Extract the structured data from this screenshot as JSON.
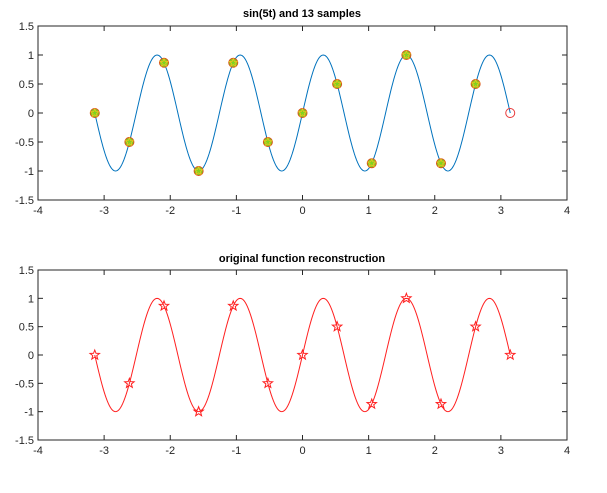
{
  "chart_data": [
    {
      "type": "line",
      "title": "sin(5t) and 13 samples",
      "xlabel": "",
      "ylabel": "",
      "xlim": [
        -4,
        4
      ],
      "ylim": [
        -1.5,
        1.5
      ],
      "xticks": [
        -4,
        -3,
        -2,
        -1,
        0,
        1,
        2,
        3,
        4
      ],
      "yticks": [
        -1.5,
        -1,
        -0.5,
        0,
        0.5,
        1,
        1.5
      ],
      "xtick_labels": [
        "-4",
        "-3",
        "-2",
        "-1",
        "0",
        "1",
        "2",
        "3",
        "4"
      ],
      "ytick_labels": [
        "-1.5",
        "-1",
        "-0.5",
        "0",
        "0.5",
        "1",
        "1.5"
      ],
      "grid": false,
      "curve": {
        "function": "sin(5t)",
        "t_range": [
          -3.1416,
          3.1416
        ],
        "color": "#0072BD"
      },
      "samples": {
        "t": [
          -3.1416,
          -2.618,
          -2.0944,
          -1.5708,
          -1.0472,
          -0.5236,
          0,
          0.5236,
          1.0472,
          1.5708,
          2.0944,
          2.618,
          3.1416
        ],
        "y": [
          0,
          -0.5,
          0.866,
          -1,
          0.866,
          -0.5,
          0,
          0.5,
          -0.866,
          1,
          -0.866,
          0.5,
          0
        ],
        "marker_fill": "#7ED321",
        "marker_edge": "#D95319",
        "star_color": "#F0C020"
      },
      "open_marker": {
        "t": 3.1416,
        "y": 0,
        "color": "#E8393A"
      }
    },
    {
      "type": "line",
      "title": "original function reconstruction",
      "xlabel": "",
      "ylabel": "",
      "xlim": [
        -4,
        4
      ],
      "ylim": [
        -1.5,
        1.5
      ],
      "xticks": [
        -4,
        -3,
        -2,
        -1,
        0,
        1,
        2,
        3,
        4
      ],
      "yticks": [
        -1.5,
        -1,
        -0.5,
        0,
        0.5,
        1,
        1.5
      ],
      "xtick_labels": [
        "-4",
        "-3",
        "-2",
        "-1",
        "0",
        "1",
        "2",
        "3",
        "4"
      ],
      "ytick_labels": [
        "-1.5",
        "-1",
        "-0.5",
        "0",
        "0.5",
        "1",
        "1.5"
      ],
      "grid": false,
      "curve": {
        "function": "sin(5t)",
        "t_range": [
          -3.1416,
          3.1416
        ],
        "color": "#FF2020"
      },
      "samples": {
        "t": [
          -3.1416,
          -2.618,
          -2.0944,
          -1.5708,
          -1.0472,
          -0.5236,
          0,
          0.5236,
          1.0472,
          1.5708,
          2.0944,
          2.618,
          3.1416
        ],
        "y": [
          0,
          -0.5,
          0.866,
          -1,
          0.866,
          -0.5,
          0,
          0.5,
          -0.866,
          1,
          -0.866,
          0.5,
          0
        ],
        "marker": "star",
        "color": "#FF2020"
      }
    }
  ]
}
